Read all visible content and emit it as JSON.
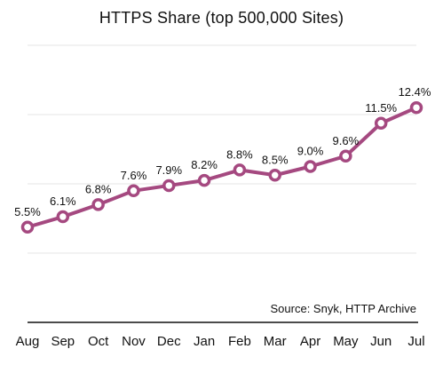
{
  "chart_data": {
    "type": "line",
    "title": "HTTPS Share (top 500,000 Sites)",
    "source": "Source: Snyk, HTTP Archive",
    "categories": [
      "Aug",
      "Sep",
      "Oct",
      "Nov",
      "Dec",
      "Jan",
      "Feb",
      "Mar",
      "Apr",
      "May",
      "Jun",
      "Jul"
    ],
    "series": [
      {
        "values": [
          5.5,
          6.1,
          6.8,
          7.6,
          7.9,
          8.2,
          8.8,
          8.5,
          9.0,
          9.6,
          11.5,
          12.4
        ],
        "labels": [
          "5.5%",
          "6.1%",
          "6.8%",
          "7.6%",
          "7.9%",
          "8.2%",
          "8.8%",
          "8.5%",
          "9.0%",
          "9.6%",
          "11.5%",
          "12.4%"
        ],
        "color": "#a54980"
      }
    ],
    "ylim": [
      0,
      14
    ],
    "grid": true,
    "gridlines": [
      4,
      8,
      12,
      16
    ],
    "colors": {
      "line": "#a54980",
      "marker_fill": "#ffffff",
      "grid": "#e6e6e6",
      "axis": "#111111"
    }
  }
}
